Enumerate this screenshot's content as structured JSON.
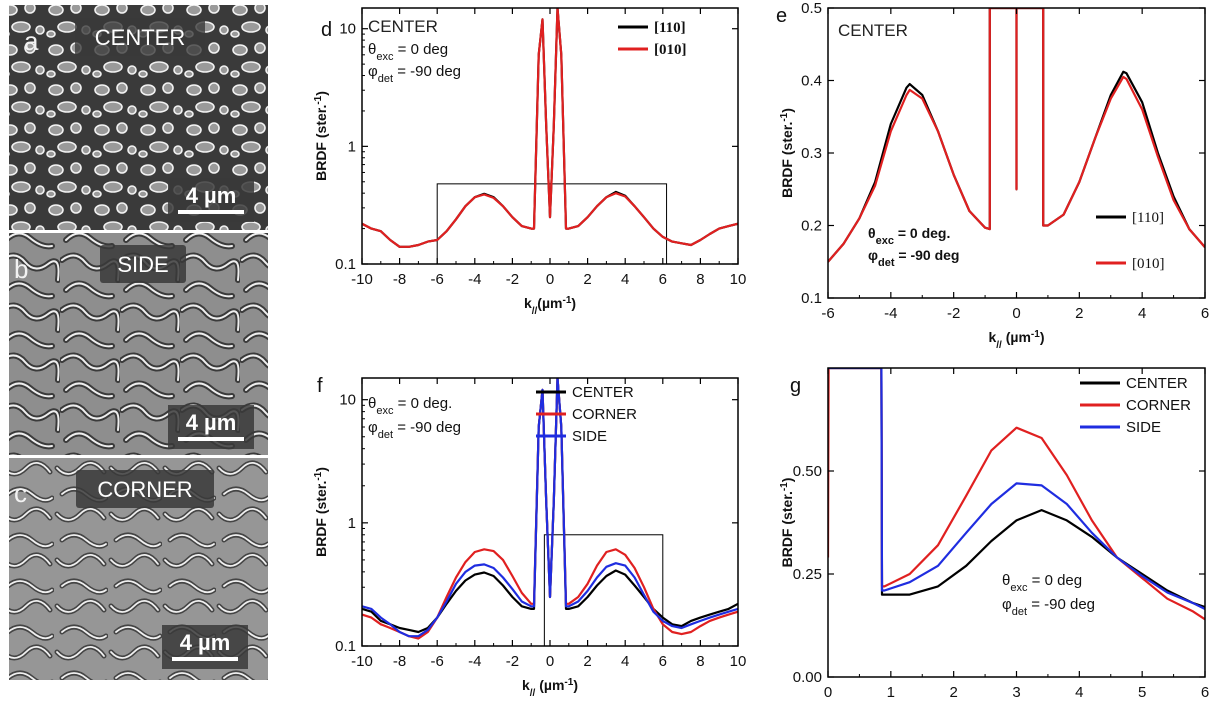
{
  "sem_panels": [
    {
      "letter": "a",
      "title": "CENTER",
      "scale": "4 µm",
      "morphology": "dots"
    },
    {
      "letter": "b",
      "title": "SIDE",
      "scale": "4 µm",
      "morphology": "worms"
    },
    {
      "letter": "c",
      "title": "CORNER",
      "scale": "4 µm",
      "morphology": "worms"
    }
  ],
  "chart_data": [
    {
      "id": "d",
      "letter": "d",
      "type": "line",
      "yscale": "log",
      "xlim": [
        -10,
        10
      ],
      "ylim": [
        0.1,
        15
      ],
      "xticks": [
        -10,
        -8,
        -6,
        -4,
        -2,
        0,
        2,
        4,
        6,
        8,
        10
      ],
      "yticks": [
        {
          "v": 0.1,
          "label": "0.1"
        },
        {
          "v": 1,
          "label": "1"
        },
        {
          "v": 10,
          "label": "10"
        }
      ],
      "ylabel": "BRDF (ster.",
      "ylabel_sup": "-1",
      "ylabel_end": ")",
      "xlabel_main": "k",
      "xlabel_sub": "//",
      "xlabel_unit": "(µm",
      "xlabel_sup": "-1",
      "xlabel_end": ")",
      "panel_title": "CENTER",
      "annotations": [
        {
          "pre": "θ",
          "sub": "exc",
          "post": " = 0 deg",
          "bold": false
        },
        {
          "pre": "φ",
          "sub": "det",
          "post": " = -90 deg",
          "bold": false
        }
      ],
      "legend": [
        {
          "label": "[110]",
          "color": "#000000",
          "serif": true
        },
        {
          "label": "[010]",
          "color": "#e02020",
          "serif": true
        }
      ],
      "inset_box": {
        "x0": -6,
        "x1": 6.2,
        "y0": 0.1,
        "y1": 0.48
      },
      "series": [
        {
          "name": "[110]",
          "color": "#000000",
          "x": [
            -10,
            -9.5,
            -9,
            -8.5,
            -8,
            -7.5,
            -7,
            -6.5,
            -6,
            -5.5,
            -5,
            -4.5,
            -4,
            -3.5,
            -3,
            -2.5,
            -2,
            -1.5,
            -1,
            -0.85,
            -0.6,
            -0.4,
            -0.2,
            0,
            0.2,
            0.4,
            0.6,
            0.85,
            1,
            1.5,
            2,
            2.5,
            3,
            3.5,
            4,
            4.5,
            5,
            5.5,
            6,
            6.5,
            7,
            7.5,
            8,
            8.5,
            9,
            9.5,
            10
          ],
          "y": [
            0.22,
            0.2,
            0.19,
            0.16,
            0.14,
            0.14,
            0.145,
            0.155,
            0.16,
            0.19,
            0.24,
            0.31,
            0.37,
            0.395,
            0.37,
            0.31,
            0.25,
            0.21,
            0.2,
            0.2,
            6,
            12,
            1.5,
            0.25,
            1.5,
            15,
            6,
            0.2,
            0.2,
            0.21,
            0.25,
            0.31,
            0.37,
            0.41,
            0.38,
            0.31,
            0.25,
            0.2,
            0.17,
            0.155,
            0.15,
            0.145,
            0.16,
            0.18,
            0.2,
            0.21,
            0.22
          ]
        },
        {
          "name": "[010]",
          "color": "#e02020",
          "x": [
            -10,
            -9.5,
            -9,
            -8.5,
            -8,
            -7.5,
            -7,
            -6.5,
            -6,
            -5.5,
            -5,
            -4.5,
            -4,
            -3.5,
            -3,
            -2.5,
            -2,
            -1.5,
            -1,
            -0.85,
            -0.6,
            -0.4,
            -0.2,
            0,
            0.2,
            0.4,
            0.6,
            0.85,
            1,
            1.5,
            2,
            2.5,
            3,
            3.5,
            4,
            4.5,
            5,
            5.5,
            6,
            6.5,
            7,
            7.5,
            8,
            8.5,
            9,
            9.5,
            10
          ],
          "y": [
            0.22,
            0.2,
            0.19,
            0.16,
            0.14,
            0.14,
            0.145,
            0.155,
            0.16,
            0.19,
            0.24,
            0.31,
            0.37,
            0.39,
            0.365,
            0.31,
            0.25,
            0.21,
            0.2,
            0.2,
            6,
            12,
            1.5,
            0.25,
            1.5,
            15,
            6,
            0.2,
            0.2,
            0.21,
            0.25,
            0.31,
            0.37,
            0.4,
            0.375,
            0.31,
            0.25,
            0.2,
            0.17,
            0.155,
            0.15,
            0.145,
            0.16,
            0.18,
            0.2,
            0.21,
            0.22
          ]
        }
      ]
    },
    {
      "id": "e",
      "letter": "e",
      "type": "line",
      "yscale": "linear",
      "xlim": [
        -6,
        6
      ],
      "ylim": [
        0.1,
        0.5
      ],
      "xticks": [
        -6,
        -4,
        -2,
        0,
        2,
        4,
        6
      ],
      "yticks": [
        {
          "v": 0.1,
          "label": "0.1"
        },
        {
          "v": 0.2,
          "label": "0.2"
        },
        {
          "v": 0.3,
          "label": "0.3"
        },
        {
          "v": 0.4,
          "label": "0.4"
        },
        {
          "v": 0.5,
          "label": "0.5"
        }
      ],
      "ylabel": "BRDF (ster.",
      "ylabel_sup": "-1",
      "ylabel_end": ")",
      "xlabel_main": "k",
      "xlabel_sub": "//",
      "xlabel_unit": " (µm",
      "xlabel_sup": "-1",
      "xlabel_end": ")",
      "panel_title": "CENTER",
      "annotations": [
        {
          "pre": "θ",
          "sub": "exc",
          "post": " = 0 deg.",
          "bold": true
        },
        {
          "pre": "φ",
          "sub": "det",
          "post": " = -90 deg",
          "bold": true
        }
      ],
      "legend": [
        {
          "label": "[110]",
          "color": "#000000",
          "serif": true
        },
        {
          "label": "[010]",
          "color": "#e02020",
          "serif": true
        }
      ],
      "series": [
        {
          "name": "[110]",
          "color": "#000000",
          "x": [
            -6,
            -5.5,
            -5,
            -4.5,
            -4,
            -3.5,
            -3.4,
            -3,
            -2.5,
            -2,
            -1.5,
            -1,
            -0.85,
            -0.85,
            -0.001,
            -0.001,
            0,
            0.001,
            0.001,
            0.85,
            0.85,
            1,
            1.5,
            2,
            2.5,
            3,
            3.4,
            3.5,
            4,
            4.5,
            5,
            5.5,
            6
          ],
          "y": [
            0.15,
            0.175,
            0.21,
            0.26,
            0.34,
            0.39,
            0.395,
            0.38,
            0.33,
            0.27,
            0.22,
            0.197,
            0.195,
            0.5,
            0.5,
            0.5,
            0.25,
            0.5,
            0.5,
            0.5,
            0.2,
            0.2,
            0.215,
            0.26,
            0.32,
            0.38,
            0.412,
            0.41,
            0.37,
            0.3,
            0.24,
            0.195,
            0.17
          ]
        },
        {
          "name": "[010]",
          "color": "#e02020",
          "x": [
            -6,
            -5.5,
            -5,
            -4.5,
            -4,
            -3.5,
            -3.4,
            -3,
            -2.5,
            -2,
            -1.5,
            -1,
            -0.85,
            -0.85,
            -0.001,
            -0.001,
            0,
            0.001,
            0.001,
            0.85,
            0.85,
            1,
            1.5,
            2,
            2.5,
            3,
            3.4,
            3.5,
            4,
            4.5,
            5,
            5.5,
            6
          ],
          "y": [
            0.15,
            0.175,
            0.21,
            0.255,
            0.33,
            0.38,
            0.387,
            0.375,
            0.33,
            0.27,
            0.22,
            0.197,
            0.195,
            0.5,
            0.5,
            0.5,
            0.25,
            0.5,
            0.5,
            0.5,
            0.2,
            0.2,
            0.215,
            0.26,
            0.32,
            0.375,
            0.405,
            0.402,
            0.36,
            0.295,
            0.235,
            0.195,
            0.17
          ]
        }
      ]
    },
    {
      "id": "f",
      "letter": "f",
      "type": "line",
      "yscale": "log",
      "xlim": [
        -10,
        10
      ],
      "ylim": [
        0.1,
        15
      ],
      "xticks": [
        -10,
        -8,
        -6,
        -4,
        -2,
        0,
        2,
        4,
        6,
        8,
        10
      ],
      "yticks": [
        {
          "v": 0.1,
          "label": "0.1"
        },
        {
          "v": 1,
          "label": "1"
        },
        {
          "v": 10,
          "label": "10"
        }
      ],
      "ylabel": "BRDF (ster.",
      "ylabel_sup": "-1",
      "ylabel_end": ")",
      "xlabel_main": "k",
      "xlabel_sub": "//",
      "xlabel_unit": " (µm",
      "xlabel_sup": "-1",
      "xlabel_end": ")",
      "annotations": [
        {
          "pre": "θ",
          "sub": "exc",
          "post": " = 0 deg.",
          "bold": false
        },
        {
          "pre": "φ",
          "sub": "det",
          "post": " = -90 deg",
          "bold": false
        }
      ],
      "legend": [
        {
          "label": "CENTER",
          "color": "#000000",
          "serif": false
        },
        {
          "label": "CORNER",
          "color": "#e02020",
          "serif": false
        },
        {
          "label": "SIDE",
          "color": "#1f2de0",
          "serif": false
        }
      ],
      "inset_box": {
        "x0": -0.3,
        "x1": 6,
        "y0": 0.1,
        "y1": 0.8
      },
      "series": [
        {
          "name": "CENTER",
          "color": "#000000",
          "x": [
            -10,
            -9.5,
            -9,
            -8.5,
            -8,
            -7.5,
            -7,
            -6.5,
            -6,
            -5.5,
            -5,
            -4.5,
            -4,
            -3.5,
            -3,
            -2.5,
            -2,
            -1.5,
            -1,
            -0.85,
            -0.6,
            -0.4,
            -0.2,
            0,
            0.2,
            0.4,
            0.6,
            0.85,
            1,
            1.5,
            2,
            2.5,
            3,
            3.5,
            4,
            4.5,
            5,
            5.5,
            6,
            6.5,
            7,
            7.5,
            8,
            8.5,
            9,
            9.5,
            10
          ],
          "y": [
            0.2,
            0.19,
            0.16,
            0.15,
            0.14,
            0.135,
            0.13,
            0.14,
            0.17,
            0.22,
            0.28,
            0.34,
            0.38,
            0.395,
            0.37,
            0.31,
            0.25,
            0.21,
            0.2,
            0.2,
            6,
            12,
            1.5,
            0.25,
            1.5,
            15,
            6,
            0.2,
            0.2,
            0.21,
            0.25,
            0.31,
            0.37,
            0.41,
            0.38,
            0.31,
            0.25,
            0.2,
            0.17,
            0.15,
            0.145,
            0.16,
            0.17,
            0.18,
            0.19,
            0.2,
            0.22
          ]
        },
        {
          "name": "CORNER",
          "color": "#e02020",
          "x": [
            -10,
            -9.5,
            -9,
            -8.5,
            -8,
            -7.5,
            -7,
            -6.5,
            -6,
            -5.5,
            -5,
            -4.5,
            -4,
            -3.5,
            -3,
            -2.5,
            -2,
            -1.5,
            -1,
            -0.85,
            -0.6,
            -0.4,
            -0.2,
            0,
            0.2,
            0.4,
            0.6,
            0.85,
            1,
            1.5,
            2,
            2.5,
            3,
            3.5,
            4,
            4.5,
            5,
            5.5,
            6,
            6.5,
            7,
            7.5,
            8,
            8.5,
            9,
            9.5,
            10
          ],
          "y": [
            0.18,
            0.17,
            0.15,
            0.14,
            0.13,
            0.12,
            0.115,
            0.13,
            0.17,
            0.25,
            0.36,
            0.48,
            0.58,
            0.61,
            0.59,
            0.5,
            0.37,
            0.27,
            0.22,
            0.22,
            6,
            12,
            1.5,
            0.25,
            1.5,
            15,
            6,
            0.22,
            0.22,
            0.25,
            0.32,
            0.45,
            0.58,
            0.61,
            0.55,
            0.43,
            0.3,
            0.2,
            0.15,
            0.13,
            0.125,
            0.13,
            0.145,
            0.16,
            0.17,
            0.18,
            0.19
          ]
        },
        {
          "name": "SIDE",
          "color": "#1f2de0",
          "x": [
            -10,
            -9.5,
            -9,
            -8.5,
            -8,
            -7.5,
            -7,
            -6.5,
            -6,
            -5.5,
            -5,
            -4.5,
            -4,
            -3.5,
            -3,
            -2.5,
            -2,
            -1.5,
            -1,
            -0.85,
            -0.6,
            -0.4,
            -0.2,
            0,
            0.2,
            0.4,
            0.6,
            0.85,
            1,
            1.5,
            2,
            2.5,
            3,
            3.5,
            4,
            4.5,
            5,
            5.5,
            6,
            6.5,
            7,
            7.5,
            8,
            8.5,
            9,
            9.5,
            10
          ],
          "y": [
            0.21,
            0.2,
            0.17,
            0.15,
            0.13,
            0.12,
            0.12,
            0.135,
            0.17,
            0.23,
            0.32,
            0.4,
            0.45,
            0.46,
            0.43,
            0.36,
            0.29,
            0.23,
            0.21,
            0.21,
            6,
            12,
            1.5,
            0.25,
            1.5,
            15,
            6,
            0.21,
            0.21,
            0.23,
            0.28,
            0.36,
            0.44,
            0.47,
            0.45,
            0.36,
            0.26,
            0.19,
            0.16,
            0.145,
            0.14,
            0.15,
            0.16,
            0.17,
            0.18,
            0.19,
            0.2
          ]
        }
      ]
    },
    {
      "id": "g",
      "letter": "g",
      "type": "line",
      "yscale": "linear",
      "xlim": [
        0,
        6
      ],
      "ylim": [
        0,
        0.75
      ],
      "xticks": [
        0,
        1,
        2,
        3,
        4,
        5,
        6
      ],
      "yticks": [
        {
          "v": 0,
          "label": "0.00"
        },
        {
          "v": 0.25,
          "label": "0.25"
        },
        {
          "v": 0.5,
          "label": "0.50"
        }
      ],
      "ylabel": "BRDF (ster.",
      "ylabel_sup": "-1",
      "ylabel_end": ")",
      "xlabel_main": "k",
      "xlabel_sub": "//",
      "xlabel_unit": " (µm",
      "xlabel_sup": "-1",
      "xlabel_end": ")",
      "annotations": [
        {
          "pre": "θ",
          "sub": "exc",
          "post": " = 0 deg",
          "bold": false
        },
        {
          "pre": "φ",
          "sub": "det",
          "post": " = -90 deg",
          "bold": false
        }
      ],
      "legend": [
        {
          "label": "CENTER",
          "color": "#000000",
          "serif": false
        },
        {
          "label": "CORNER",
          "color": "#e02020",
          "serif": false
        },
        {
          "label": "SIDE",
          "color": "#1f2de0",
          "serif": false
        }
      ],
      "series": [
        {
          "name": "CENTER",
          "color": "#000000",
          "x": [
            0,
            0.02,
            0.85,
            0.86,
            0.9,
            1.3,
            1.75,
            2.2,
            2.6,
            3,
            3.4,
            3.8,
            4.2,
            4.6,
            5,
            5.4,
            5.8,
            6
          ],
          "y": [
            0.75,
            0.75,
            0.75,
            0.2,
            0.2,
            0.2,
            0.22,
            0.27,
            0.33,
            0.38,
            0.405,
            0.38,
            0.34,
            0.29,
            0.25,
            0.21,
            0.18,
            0.17
          ]
        },
        {
          "name": "CORNER",
          "color": "#e02020",
          "x": [
            0,
            0.01,
            0.02,
            0.85,
            0.86,
            0.9,
            1.3,
            1.75,
            2.2,
            2.6,
            3,
            3.4,
            3.8,
            4.2,
            4.6,
            5,
            5.4,
            5.8,
            6
          ],
          "y": [
            0.29,
            0.75,
            0.75,
            0.75,
            0.22,
            0.22,
            0.25,
            0.32,
            0.44,
            0.55,
            0.605,
            0.58,
            0.49,
            0.38,
            0.29,
            0.24,
            0.19,
            0.16,
            0.14
          ]
        },
        {
          "name": "SIDE",
          "color": "#1f2de0",
          "x": [
            0,
            0.02,
            0.85,
            0.86,
            0.9,
            1.3,
            1.75,
            2.2,
            2.6,
            3,
            3.4,
            3.8,
            4.2,
            4.6,
            5,
            5.4,
            5.8,
            6
          ],
          "y": [
            0.75,
            0.75,
            0.75,
            0.21,
            0.21,
            0.23,
            0.27,
            0.35,
            0.42,
            0.47,
            0.465,
            0.42,
            0.35,
            0.29,
            0.245,
            0.205,
            0.18,
            0.165
          ]
        }
      ]
    }
  ]
}
